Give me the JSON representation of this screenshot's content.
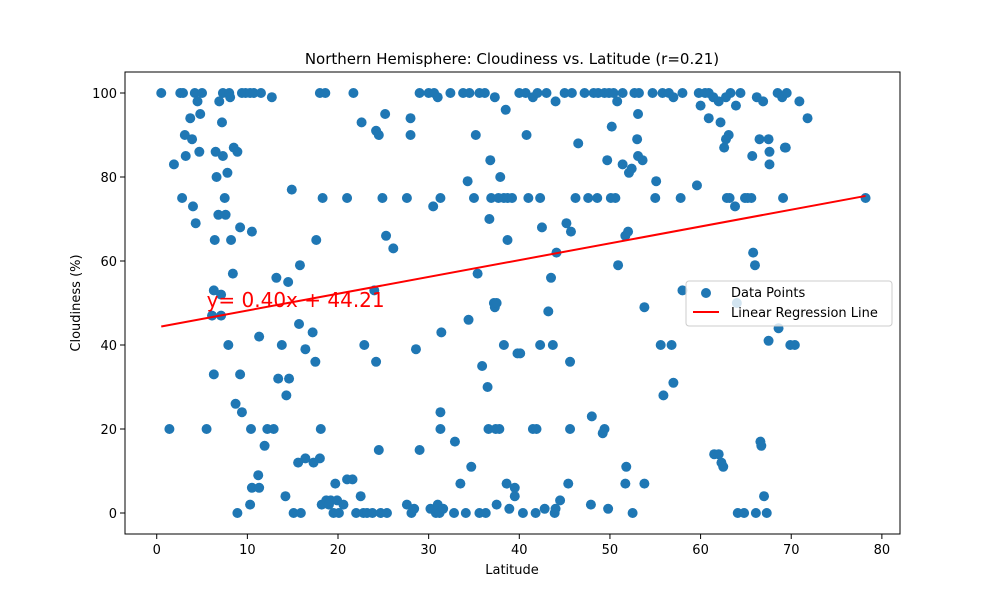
{
  "chart_data": {
    "type": "scatter",
    "title": "Northern Hemisphere: Cloudiness vs. Latitude (r=0.21)",
    "xlabel": "Latitude",
    "ylabel": "Cloudiness (%)",
    "xlim": [
      -3.5,
      82
    ],
    "ylim": [
      -5,
      105
    ],
    "xticks": [
      0,
      10,
      20,
      30,
      40,
      50,
      60,
      70,
      80
    ],
    "yticks": [
      0,
      20,
      40,
      60,
      80,
      100
    ],
    "grid": false,
    "legend_position": "center-right",
    "colors": {
      "points": "#1f77b4",
      "line": "#ff0000"
    },
    "series": [
      {
        "name": "Data Points",
        "kind": "scatter",
        "points": [
          [
            0.5,
            100
          ],
          [
            2.6,
            100
          ],
          [
            2.9,
            100
          ],
          [
            4.2,
            100
          ],
          [
            5.0,
            100
          ],
          [
            7.3,
            100
          ],
          [
            8.0,
            100
          ],
          [
            8.1,
            99
          ],
          [
            9.4,
            100
          ],
          [
            9.8,
            100
          ],
          [
            10.3,
            100
          ],
          [
            10.7,
            100
          ],
          [
            11.5,
            100
          ],
          [
            12.7,
            99
          ],
          [
            18.0,
            100
          ],
          [
            18.6,
            100
          ],
          [
            21.7,
            100
          ],
          [
            29.0,
            100
          ],
          [
            30.0,
            100
          ],
          [
            30.6,
            100
          ],
          [
            31.0,
            99
          ],
          [
            32.4,
            100
          ],
          [
            33.8,
            100
          ],
          [
            34.5,
            100
          ],
          [
            35.6,
            100
          ],
          [
            36.2,
            100
          ],
          [
            37.3,
            99
          ],
          [
            40.0,
            100
          ],
          [
            40.7,
            100
          ],
          [
            41.5,
            99
          ],
          [
            42.0,
            100
          ],
          [
            43.0,
            100
          ],
          [
            44.0,
            98
          ],
          [
            45.0,
            100
          ],
          [
            45.8,
            100
          ],
          [
            47.2,
            100
          ],
          [
            48.2,
            100
          ],
          [
            48.7,
            100
          ],
          [
            49.4,
            100
          ],
          [
            49.9,
            100
          ],
          [
            50.4,
            100
          ],
          [
            50.8,
            98
          ],
          [
            51.4,
            100
          ],
          [
            52.7,
            100
          ],
          [
            53.2,
            100
          ],
          [
            54.7,
            100
          ],
          [
            55.8,
            100
          ],
          [
            56.5,
            100
          ],
          [
            57.0,
            99
          ],
          [
            58.0,
            100
          ],
          [
            59.8,
            100
          ],
          [
            60.9,
            100
          ],
          [
            61.4,
            99
          ],
          [
            62.0,
            98
          ],
          [
            62.8,
            99
          ],
          [
            63.3,
            100
          ],
          [
            64.4,
            100
          ],
          [
            66.2,
            99
          ],
          [
            66.9,
            98
          ],
          [
            68.5,
            100
          ],
          [
            69.0,
            99
          ],
          [
            69.5,
            100
          ],
          [
            70.9,
            98
          ],
          [
            71.8,
            94
          ],
          [
            1.9,
            83
          ],
          [
            2.8,
            75
          ],
          [
            3.1,
            90
          ],
          [
            3.2,
            85
          ],
          [
            3.7,
            94
          ],
          [
            3.9,
            89
          ],
          [
            4.0,
            73
          ],
          [
            4.3,
            69
          ],
          [
            4.5,
            98
          ],
          [
            4.7,
            86
          ],
          [
            4.8,
            95
          ],
          [
            6.5,
            86
          ],
          [
            6.6,
            80
          ],
          [
            6.8,
            71
          ],
          [
            6.9,
            98
          ],
          [
            7.2,
            93
          ],
          [
            7.3,
            85
          ],
          [
            7.5,
            75
          ],
          [
            7.6,
            71
          ],
          [
            7.8,
            81
          ],
          [
            8.5,
            87
          ],
          [
            8.9,
            86
          ],
          [
            9.2,
            68
          ],
          [
            6.4,
            65
          ],
          [
            6.3,
            53
          ],
          [
            7.1,
            52
          ],
          [
            7.9,
            40
          ],
          [
            8.2,
            65
          ],
          [
            8.4,
            57
          ],
          [
            6.1,
            47
          ],
          [
            7.1,
            47
          ],
          [
            10.5,
            67
          ],
          [
            11.3,
            42
          ],
          [
            5.5,
            20
          ],
          [
            1.4,
            20
          ],
          [
            8.7,
            26
          ],
          [
            9.2,
            33
          ],
          [
            6.3,
            33
          ],
          [
            9.4,
            24
          ],
          [
            10.4,
            20
          ],
          [
            11.9,
            16
          ],
          [
            12.2,
            20
          ],
          [
            12.9,
            20
          ],
          [
            11.2,
            9
          ],
          [
            10.5,
            6
          ],
          [
            11.3,
            6
          ],
          [
            10.3,
            2
          ],
          [
            8.9,
            0
          ],
          [
            13.2,
            56
          ],
          [
            14.5,
            55
          ],
          [
            13.4,
            32
          ],
          [
            13.8,
            40
          ],
          [
            14.3,
            28
          ],
          [
            14.6,
            32
          ],
          [
            14.9,
            77
          ],
          [
            15.8,
            59
          ],
          [
            15.7,
            45
          ],
          [
            16.4,
            39
          ],
          [
            17.2,
            43
          ],
          [
            17.5,
            36
          ],
          [
            17.6,
            65
          ],
          [
            18.3,
            75
          ],
          [
            18.1,
            20
          ],
          [
            18.0,
            13
          ],
          [
            16.4,
            13
          ],
          [
            15.6,
            12
          ],
          [
            17.3,
            12
          ],
          [
            14.2,
            4
          ],
          [
            15.1,
            0
          ],
          [
            15.9,
            0
          ],
          [
            18.2,
            2
          ],
          [
            18.7,
            3
          ],
          [
            19.0,
            2
          ],
          [
            19.2,
            3
          ],
          [
            19.7,
            7
          ],
          [
            19.9,
            3
          ],
          [
            19.5,
            0
          ],
          [
            20.1,
            0
          ],
          [
            20.6,
            2
          ],
          [
            21.0,
            8
          ],
          [
            21.6,
            8
          ],
          [
            22.0,
            0
          ],
          [
            22.5,
            4
          ],
          [
            22.8,
            0
          ],
          [
            23.2,
            0
          ],
          [
            23.8,
            0
          ],
          [
            24.5,
            15
          ],
          [
            24.2,
            36
          ],
          [
            22.9,
            40
          ],
          [
            24.0,
            53
          ],
          [
            24.7,
            0
          ],
          [
            25.4,
            0
          ],
          [
            22.6,
            93
          ],
          [
            24.2,
            91
          ],
          [
            24.5,
            90
          ],
          [
            25.2,
            95
          ],
          [
            24.9,
            75
          ],
          [
            21.0,
            75
          ],
          [
            25.3,
            66
          ],
          [
            26.1,
            63
          ],
          [
            27.6,
            75
          ],
          [
            28.0,
            94
          ],
          [
            28.0,
            90
          ],
          [
            28.6,
            39
          ],
          [
            29.0,
            15
          ],
          [
            27.6,
            2
          ],
          [
            28.1,
            0
          ],
          [
            28.4,
            1
          ],
          [
            30.2,
            1
          ],
          [
            30.8,
            0
          ],
          [
            31.0,
            2
          ],
          [
            31.2,
            0
          ],
          [
            31.6,
            1
          ],
          [
            32.8,
            0
          ],
          [
            31.3,
            20
          ],
          [
            31.3,
            24
          ],
          [
            31.4,
            43
          ],
          [
            31.3,
            75
          ],
          [
            30.5,
            73
          ],
          [
            32.9,
            17
          ],
          [
            33.5,
            7
          ],
          [
            34.1,
            0
          ],
          [
            34.4,
            46
          ],
          [
            34.3,
            79
          ],
          [
            34.7,
            11
          ],
          [
            35.0,
            75
          ],
          [
            35.2,
            90
          ],
          [
            35.4,
            57
          ],
          [
            35.6,
            0
          ],
          [
            35.9,
            35
          ],
          [
            36.3,
            0
          ],
          [
            36.5,
            30
          ],
          [
            36.6,
            20
          ],
          [
            36.7,
            70
          ],
          [
            36.8,
            84
          ],
          [
            36.9,
            75
          ],
          [
            37.2,
            50
          ],
          [
            37.3,
            49
          ],
          [
            37.5,
            50
          ],
          [
            37.5,
            2
          ],
          [
            37.7,
            75
          ],
          [
            37.8,
            20
          ],
          [
            37.9,
            80
          ],
          [
            37.4,
            20
          ],
          [
            38.3,
            75
          ],
          [
            38.7,
            75
          ],
          [
            38.5,
            96
          ],
          [
            38.7,
            65
          ],
          [
            38.9,
            1
          ],
          [
            39.2,
            75
          ],
          [
            39.5,
            4
          ],
          [
            39.8,
            38
          ],
          [
            39.5,
            6
          ],
          [
            40.1,
            38
          ],
          [
            40.4,
            0
          ],
          [
            40.8,
            90
          ],
          [
            41.0,
            75
          ],
          [
            38.3,
            40
          ],
          [
            38.6,
            7
          ],
          [
            41.5,
            20
          ],
          [
            41.8,
            0
          ],
          [
            41.9,
            20
          ],
          [
            42.3,
            40
          ],
          [
            42.3,
            75
          ],
          [
            42.5,
            68
          ],
          [
            42.8,
            1
          ],
          [
            43.2,
            48
          ],
          [
            43.5,
            56
          ],
          [
            43.7,
            40
          ],
          [
            44.1,
            62
          ],
          [
            43.9,
            0
          ],
          [
            44.0,
            1
          ],
          [
            44.5,
            3
          ],
          [
            45.2,
            69
          ],
          [
            45.4,
            7
          ],
          [
            45.6,
            36
          ],
          [
            45.6,
            20
          ],
          [
            45.7,
            67
          ],
          [
            46.2,
            75
          ],
          [
            46.5,
            88
          ],
          [
            47.6,
            75
          ],
          [
            47.9,
            2
          ],
          [
            48.0,
            23
          ],
          [
            48.6,
            75
          ],
          [
            49.2,
            19
          ],
          [
            49.4,
            20
          ],
          [
            49.8,
            1
          ],
          [
            49.7,
            84
          ],
          [
            50.1,
            75
          ],
          [
            50.2,
            92
          ],
          [
            50.6,
            75
          ],
          [
            50.9,
            59
          ],
          [
            51.4,
            83
          ],
          [
            51.7,
            66
          ],
          [
            51.7,
            7
          ],
          [
            51.8,
            11
          ],
          [
            52.0,
            67
          ],
          [
            52.1,
            81
          ],
          [
            52.4,
            82
          ],
          [
            52.5,
            0
          ],
          [
            53.0,
            89
          ],
          [
            53.1,
            85
          ],
          [
            53.1,
            95
          ],
          [
            53.6,
            84
          ],
          [
            53.8,
            7
          ],
          [
            53.8,
            49
          ],
          [
            55.0,
            75
          ],
          [
            55.1,
            79
          ],
          [
            55.6,
            40
          ],
          [
            55.9,
            28
          ],
          [
            56.8,
            40
          ],
          [
            57.0,
            31
          ],
          [
            57.8,
            75
          ],
          [
            58.0,
            53
          ],
          [
            59.6,
            78
          ],
          [
            60.0,
            97
          ],
          [
            60.5,
            100
          ],
          [
            60.9,
            94
          ],
          [
            61.5,
            14
          ],
          [
            62.0,
            14
          ],
          [
            62.2,
            93
          ],
          [
            62.3,
            12
          ],
          [
            62.5,
            11
          ],
          [
            62.6,
            87
          ],
          [
            62.8,
            89
          ],
          [
            62.9,
            75
          ],
          [
            63.1,
            90
          ],
          [
            63.2,
            75
          ],
          [
            63.8,
            73
          ],
          [
            63.9,
            97
          ],
          [
            64.0,
            50
          ],
          [
            64.1,
            0
          ],
          [
            64.8,
            0
          ],
          [
            64.9,
            75
          ],
          [
            65.2,
            75
          ],
          [
            65.6,
            75
          ],
          [
            65.7,
            85
          ],
          [
            65.8,
            62
          ],
          [
            66.0,
            59
          ],
          [
            66.1,
            0
          ],
          [
            66.5,
            89
          ],
          [
            66.6,
            17
          ],
          [
            66.7,
            16
          ],
          [
            67.0,
            4
          ],
          [
            67.3,
            0
          ],
          [
            67.6,
            83
          ],
          [
            67.5,
            89
          ],
          [
            67.6,
            86
          ],
          [
            67.5,
            41
          ],
          [
            68.6,
            44
          ],
          [
            69.1,
            75
          ],
          [
            69.3,
            87
          ],
          [
            69.4,
            87
          ],
          [
            69.9,
            40
          ],
          [
            70.4,
            40
          ],
          [
            78.2,
            75
          ]
        ]
      },
      {
        "name": "Linear Regression Line",
        "kind": "line",
        "slope": 0.4,
        "intercept": 44.21,
        "x_range": [
          0.5,
          78.2
        ]
      }
    ],
    "annotations": [
      {
        "text": "y= 0.40x + 44.21",
        "x": 5.5,
        "y": 49,
        "color": "#ff0000"
      }
    ]
  }
}
